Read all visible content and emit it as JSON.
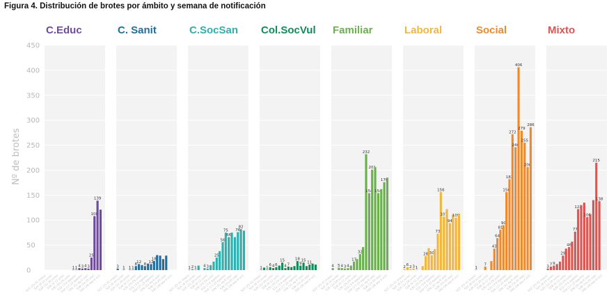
{
  "figure": {
    "title": "Figura 4.  Distribución de brotes por ámbito y semana de notificación"
  },
  "chart_data": {
    "type": "bar",
    "title": "Figura 4.  Distribución de brotes por ámbito y semana de notificación",
    "ylabel": "Nº de brotes",
    "xlabel": "",
    "ylim": [
      0,
      450
    ],
    "yticks": [
      0,
      50,
      100,
      150,
      200,
      250,
      300,
      350,
      400,
      450
    ],
    "grid": true,
    "categories": [
      "S22 (25-31 mayo)",
      "S23 (1-7 junio)",
      "S24 (8-14 junio)",
      "S25 (15-21 junio)",
      "S26 (22-28 junio)",
      "S27 (29 jun-5 jul)",
      "S28 (6-12 julio)",
      "S29 (13-19 julio)",
      "S30 (20-26 julio)",
      "S31 (27 jul-2 ag)",
      "S32 (3-9 agosto)",
      "S33 (10-16 agosto)",
      "S34 (17-23 agosto)",
      "S35 (24-30 agosto)",
      "S36 (31 ag-6 sep)",
      "S37 (7-13 sep)",
      "S38 (14-20 sep)",
      "S39 (21-27 sep)",
      "S40 (28 sep-4 oct)",
      "S41 (5-11 oct)"
    ],
    "series": [
      {
        "name": "C.Educ",
        "color": "#6f4a9e",
        "values": [
          0,
          0,
          0,
          0,
          0,
          0,
          0,
          0,
          0,
          1,
          1,
          4,
          3,
          4,
          3,
          25,
          108,
          139,
          121,
          0
        ],
        "labels": [
          "",
          "",
          "",
          "",
          "",
          "",
          "",
          "",
          "",
          "1",
          "1",
          "4",
          "3",
          "4",
          "3",
          "25",
          "108",
          "139",
          "",
          ""
        ]
      },
      {
        "name": "C. Sanit",
        "color": "#1f6e9b",
        "values": [
          3,
          0,
          1,
          0,
          1,
          1,
          8,
          12,
          10,
          8,
          13,
          12,
          18,
          30,
          29,
          22,
          29,
          0,
          0,
          0
        ],
        "labels": [
          "3",
          "",
          "1",
          "",
          "1",
          "1",
          "8",
          "12",
          "",
          "8",
          "",
          "12",
          "18",
          "",
          "",
          "",
          "",
          "",
          "",
          ""
        ]
      },
      {
        "name": "C.SocSan",
        "color": "#2bb2b0",
        "values": [
          1,
          2,
          1,
          9,
          0,
          4,
          3,
          10,
          17,
          25,
          38,
          56,
          75,
          66,
          75,
          66,
          76,
          82,
          79,
          0
        ],
        "labels": [
          "1",
          "2",
          "1",
          "",
          "",
          "4",
          "3",
          "",
          "",
          "25",
          "",
          "56",
          "75",
          "66",
          "",
          "",
          "76",
          "82",
          "",
          ""
        ]
      },
      {
        "name": "Col.SocVul",
        "color": "#0f8c5a",
        "values": [
          1,
          5,
          1,
          6,
          4,
          6,
          9,
          15,
          4,
          7,
          6,
          8,
          18,
          9,
          15,
          8,
          11,
          13,
          11,
          0
        ],
        "labels": [
          "1",
          "",
          "1",
          "6",
          "4",
          "6",
          "",
          "15",
          "4",
          "7",
          "",
          "",
          "18",
          "9",
          "15",
          "",
          "11",
          "",
          "",
          ""
        ]
      },
      {
        "name": "Familiar",
        "color": "#6ab04c",
        "values": [
          4,
          0,
          5,
          4,
          3,
          4,
          9,
          17,
          22,
          32,
          46,
          232,
          154,
          201,
          206,
          154,
          162,
          176,
          185,
          0
        ],
        "labels": [
          "4",
          "",
          "5",
          "4",
          "3",
          "4",
          "",
          "17",
          "",
          "32",
          "",
          "232",
          "154",
          "201",
          "",
          "154",
          "",
          "176",
          "",
          ""
        ]
      },
      {
        "name": "Laboral",
        "color": "#f4b63a",
        "values": [
          2,
          6,
          2,
          3,
          1,
          0,
          8,
          28,
          44,
          30,
          42,
          73,
          156,
          107,
          122,
          94,
          111,
          105,
          113,
          0
        ],
        "labels": [
          "2",
          "6",
          "2",
          "3",
          "1",
          "",
          "",
          "28",
          "",
          "30",
          "",
          "73",
          "156",
          "107",
          "",
          "94",
          "",
          "105",
          "",
          ""
        ]
      },
      {
        "name": "Social",
        "color": "#ee8a2c",
        "values": [
          1,
          0,
          0,
          7,
          0,
          18,
          43,
          64,
          81,
          90,
          156,
          182,
          272,
          246,
          406,
          279,
          255,
          206,
          286,
          0
        ],
        "labels": [
          "1",
          "",
          "",
          "7",
          "",
          "",
          "43",
          "64",
          "81",
          "90",
          "156",
          "182",
          "272",
          "246",
          "406",
          "279",
          "255",
          "206",
          "286",
          ""
        ]
      },
      {
        "name": "Mixto",
        "color": "#db5551",
        "values": [
          3,
          7,
          9,
          12,
          17,
          29,
          43,
          46,
          57,
          77,
          122,
          130,
          135,
          106,
          112,
          140,
          215,
          138,
          0,
          0
        ],
        "labels": [
          "3",
          "7",
          "9",
          "",
          "",
          "29",
          "",
          "46",
          "",
          "77",
          "122",
          "",
          "",
          "106",
          "",
          "",
          "215",
          "138",
          "",
          ""
        ]
      }
    ]
  }
}
